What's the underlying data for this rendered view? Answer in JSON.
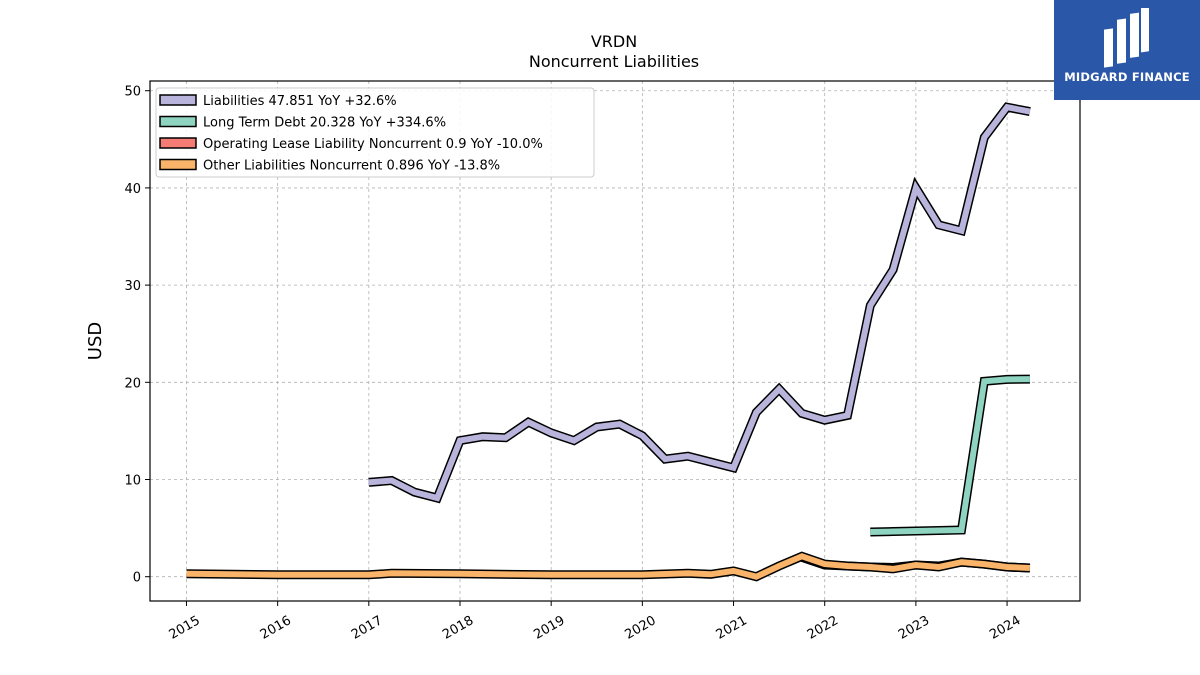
{
  "chart_data": {
    "type": "line",
    "title": "VRDN",
    "subtitle": "Noncurrent  Liabilities",
    "ylabel": "USD",
    "xlabel": "",
    "xlim": [
      2014.6,
      2024.8
    ],
    "ylim": [
      -2.5,
      51
    ],
    "yticks": [
      0,
      10,
      20,
      30,
      40,
      50
    ],
    "xticks": [
      "2015",
      "2016",
      "2017",
      "2018",
      "2019",
      "2020",
      "2021",
      "2022",
      "2023",
      "2024"
    ],
    "grid": true,
    "legend_position": "top-left",
    "series": [
      {
        "name": "Liabilities  47.851 YoY +32.6%",
        "color": "#b9b4dc",
        "x": [
          2017.0,
          2017.25,
          2017.5,
          2017.75,
          2018.0,
          2018.25,
          2018.5,
          2018.75,
          2019.0,
          2019.25,
          2019.5,
          2019.75,
          2020.0,
          2020.25,
          2020.5,
          2020.75,
          2021.0,
          2021.25,
          2021.5,
          2021.75,
          2022.0,
          2022.25,
          2022.5,
          2022.75,
          2023.0,
          2023.25,
          2023.5,
          2023.75,
          2024.0,
          2024.25
        ],
        "values": [
          9.7,
          9.9,
          8.7,
          8.1,
          14.0,
          14.4,
          14.3,
          15.9,
          14.8,
          14.0,
          15.4,
          15.7,
          14.5,
          12.1,
          12.4,
          11.8,
          11.2,
          16.9,
          19.3,
          16.8,
          16.1,
          16.6,
          27.9,
          31.6,
          40.0,
          36.2,
          35.6,
          45.2,
          48.3,
          47.85
        ]
      },
      {
        "name": "Long Term Debt  20.328 YoY +334.6%",
        "color": "#8fd4c0",
        "x": [
          2022.5,
          2022.75,
          2023.0,
          2023.25,
          2023.5,
          2023.75,
          2024.0,
          2024.25
        ],
        "values": [
          4.6,
          4.65,
          4.7,
          4.75,
          4.8,
          20.1,
          20.3,
          20.33
        ]
      },
      {
        "name": "Operating Lease Liability Noncurrent  0.9 YoY -10.0%",
        "color": "#f47c74",
        "x": [
          2021.75,
          2022.0,
          2022.25,
          2022.5,
          2022.75,
          2023.0,
          2023.25,
          2023.5,
          2023.75,
          2024.0,
          2024.25
        ],
        "values": [
          2.0,
          1.2,
          1.1,
          1.0,
          0.95,
          1.2,
          1.1,
          1.5,
          1.3,
          1.0,
          0.9
        ]
      },
      {
        "name": "Other Liabilities Noncurrent  0.896 YoY -13.8%",
        "color": "#f9b46a",
        "x": [
          2015.0,
          2016.0,
          2017.0,
          2017.25,
          2018.0,
          2019.0,
          2020.0,
          2020.5,
          2020.75,
          2021.0,
          2021.25,
          2021.5,
          2021.75,
          2022.0,
          2022.25,
          2022.5,
          2022.75,
          2023.0,
          2023.25,
          2023.5,
          2023.75,
          2024.0,
          2024.25
        ],
        "values": [
          0.3,
          0.2,
          0.2,
          0.35,
          0.3,
          0.2,
          0.2,
          0.35,
          0.25,
          0.6,
          0.0,
          1.1,
          2.1,
          1.3,
          1.1,
          1.0,
          0.8,
          1.2,
          1.0,
          1.5,
          1.3,
          1.0,
          0.9
        ]
      }
    ]
  },
  "logo": {
    "text": "MIDGARD FINANCE",
    "background": "#2b57a8"
  }
}
